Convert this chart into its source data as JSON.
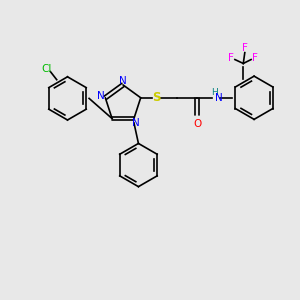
{
  "background_color": "#e8e8e8",
  "atom_colors": {
    "N": "#0000ff",
    "O": "#ff0000",
    "S": "#cccc00",
    "Cl": "#00bb00",
    "F": "#ff00ff",
    "H_amide": "#008080",
    "C": "#000000"
  },
  "fig_width": 3.0,
  "fig_height": 3.0,
  "dpi": 100
}
